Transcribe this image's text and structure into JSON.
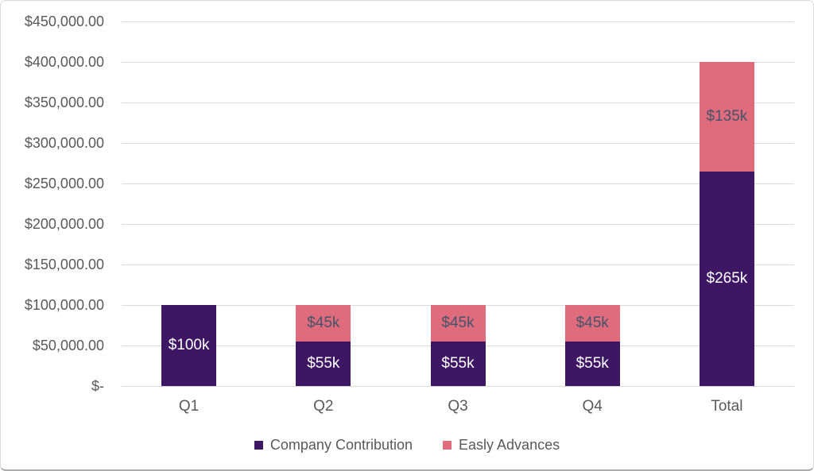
{
  "chart_data": {
    "type": "bar",
    "stacked": true,
    "title": "",
    "xlabel": "",
    "ylabel": "",
    "categories": [
      "Q1",
      "Q2",
      "Q3",
      "Q4",
      "Total"
    ],
    "series": [
      {
        "name": "Company Contribution",
        "color": "#3e1764",
        "label_color": "#ffffff",
        "values": [
          100000,
          55000,
          55000,
          55000,
          265000
        ],
        "labels": [
          "$100k",
          "$55k",
          "$55k",
          "$55k",
          "$265k"
        ]
      },
      {
        "name": "Easly Advances",
        "color": "#e06b7d",
        "label_color": "#44546a",
        "values": [
          0,
          45000,
          45000,
          45000,
          135000
        ],
        "labels": [
          "",
          "$45k",
          "$45k",
          "$45k",
          "$135k"
        ]
      }
    ],
    "y_ticks": [
      {
        "value": 450000,
        "label": "$450,000.00"
      },
      {
        "value": 400000,
        "label": "$400,000.00"
      },
      {
        "value": 350000,
        "label": "$350,000.00"
      },
      {
        "value": 300000,
        "label": "$300,000.00"
      },
      {
        "value": 250000,
        "label": "$250,000.00"
      },
      {
        "value": 200000,
        "label": "$200,000.00"
      },
      {
        "value": 150000,
        "label": "$150,000.00"
      },
      {
        "value": 100000,
        "label": "$100,000.00"
      },
      {
        "value": 50000,
        "label": "$50,000.00"
      },
      {
        "value": 0,
        "label": "$-"
      }
    ],
    "ylim": [
      0,
      450000
    ],
    "grid": true,
    "legend_position": "bottom"
  },
  "legend": {
    "items": [
      {
        "label": "Company Contribution",
        "color": "#3e1764"
      },
      {
        "label": "Easly Advances",
        "color": "#e06b7d"
      }
    ]
  },
  "colors": {
    "background": "#ffffff",
    "gridline": "#d9d9d9",
    "axis_text": "#595959",
    "border": "#d9d9d9"
  }
}
